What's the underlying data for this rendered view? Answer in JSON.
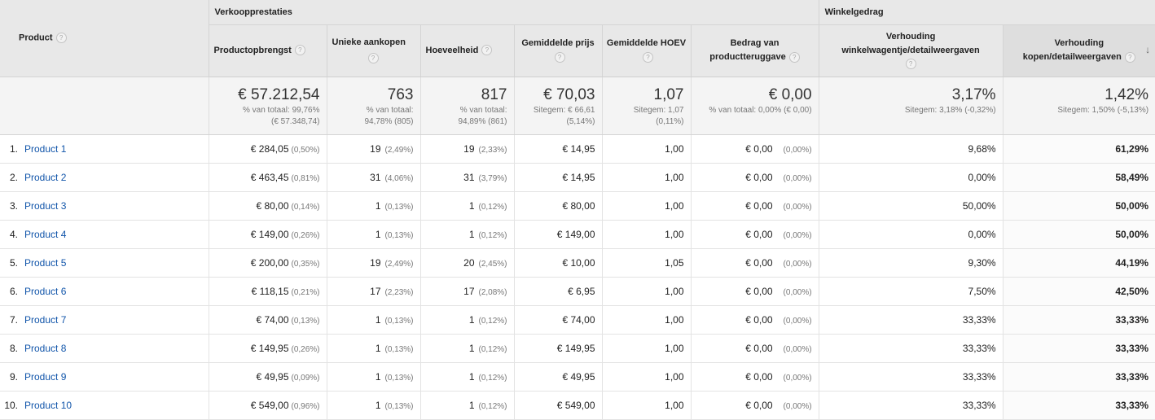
{
  "header": {
    "product_label": "Product",
    "group_sales": "Verkoopprestaties",
    "group_behavior": "Winkelgedrag",
    "columns": [
      {
        "label": "Productopbrengst"
      },
      {
        "label": "Unieke aankopen"
      },
      {
        "label": "Hoeveelheid"
      },
      {
        "label": "Gemiddelde prijs"
      },
      {
        "label": "Gemiddelde HOEV"
      },
      {
        "label": "Bedrag van productteruggave"
      },
      {
        "label": "Verhouding winkelwagentje/detailweergaven"
      },
      {
        "label": "Verhouding kopen/detailweergaven"
      }
    ],
    "help_glyph": "?",
    "sort_glyph": "↓"
  },
  "totals": [
    {
      "value": "€ 57.212,54",
      "sub1": "% van totaal: 99,76%",
      "sub2": "(€ 57.348,74)"
    },
    {
      "value": "763",
      "sub1": "% van totaal:",
      "sub2": "94,78% (805)"
    },
    {
      "value": "817",
      "sub1": "% van totaal:",
      "sub2": "94,89% (861)"
    },
    {
      "value": "€ 70,03",
      "sub1": "Sitegem: € 66,61",
      "sub2": "(5,14%)"
    },
    {
      "value": "1,07",
      "sub1": "Sitegem: 1,07",
      "sub2": "(0,11%)"
    },
    {
      "value": "€ 0,00",
      "sub1": "% van totaal: 0,00% (€ 0,00)",
      "sub2": ""
    },
    {
      "value": "3,17%",
      "sub1": "Sitegem: 3,18% (-0,32%)",
      "sub2": ""
    },
    {
      "value": "1,42%",
      "sub1": "Sitegem: 1,50% (-5,13%)",
      "sub2": ""
    }
  ],
  "rows": [
    {
      "idx": "1.",
      "name": "Product 1",
      "rev": "€ 284,05",
      "rev_pct": "(0,50%)",
      "uniq": "19",
      "uniq_pct": "(2,49%)",
      "qty": "19",
      "qty_pct": "(2,33%)",
      "price": "€ 14,95",
      "hoev": "1,00",
      "refund": "€ 0,00",
      "refund_pct": "(0,00%)",
      "cart": "9,68%",
      "buy": "61,29%"
    },
    {
      "idx": "2.",
      "name": "Product 2",
      "rev": "€ 463,45",
      "rev_pct": "(0,81%)",
      "uniq": "31",
      "uniq_pct": "(4,06%)",
      "qty": "31",
      "qty_pct": "(3,79%)",
      "price": "€ 14,95",
      "hoev": "1,00",
      "refund": "€ 0,00",
      "refund_pct": "(0,00%)",
      "cart": "0,00%",
      "buy": "58,49%"
    },
    {
      "idx": "3.",
      "name": "Product 3",
      "rev": "€ 80,00",
      "rev_pct": "(0,14%)",
      "uniq": "1",
      "uniq_pct": "(0,13%)",
      "qty": "1",
      "qty_pct": "(0,12%)",
      "price": "€ 80,00",
      "hoev": "1,00",
      "refund": "€ 0,00",
      "refund_pct": "(0,00%)",
      "cart": "50,00%",
      "buy": "50,00%"
    },
    {
      "idx": "4.",
      "name": "Product 4",
      "rev": "€ 149,00",
      "rev_pct": "(0,26%)",
      "uniq": "1",
      "uniq_pct": "(0,13%)",
      "qty": "1",
      "qty_pct": "(0,12%)",
      "price": "€ 149,00",
      "hoev": "1,00",
      "refund": "€ 0,00",
      "refund_pct": "(0,00%)",
      "cart": "0,00%",
      "buy": "50,00%"
    },
    {
      "idx": "5.",
      "name": "Product 5",
      "rev": "€ 200,00",
      "rev_pct": "(0,35%)",
      "uniq": "19",
      "uniq_pct": "(2,49%)",
      "qty": "20",
      "qty_pct": "(2,45%)",
      "price": "€ 10,00",
      "hoev": "1,05",
      "refund": "€ 0,00",
      "refund_pct": "(0,00%)",
      "cart": "9,30%",
      "buy": "44,19%"
    },
    {
      "idx": "6.",
      "name": "Product 6",
      "rev": "€ 118,15",
      "rev_pct": "(0,21%)",
      "uniq": "17",
      "uniq_pct": "(2,23%)",
      "qty": "17",
      "qty_pct": "(2,08%)",
      "price": "€ 6,95",
      "hoev": "1,00",
      "refund": "€ 0,00",
      "refund_pct": "(0,00%)",
      "cart": "7,50%",
      "buy": "42,50%"
    },
    {
      "idx": "7.",
      "name": "Product 7",
      "rev": "€ 74,00",
      "rev_pct": "(0,13%)",
      "uniq": "1",
      "uniq_pct": "(0,13%)",
      "qty": "1",
      "qty_pct": "(0,12%)",
      "price": "€ 74,00",
      "hoev": "1,00",
      "refund": "€ 0,00",
      "refund_pct": "(0,00%)",
      "cart": "33,33%",
      "buy": "33,33%"
    },
    {
      "idx": "8.",
      "name": "Product 8",
      "rev": "€ 149,95",
      "rev_pct": "(0,26%)",
      "uniq": "1",
      "uniq_pct": "(0,13%)",
      "qty": "1",
      "qty_pct": "(0,12%)",
      "price": "€ 149,95",
      "hoev": "1,00",
      "refund": "€ 0,00",
      "refund_pct": "(0,00%)",
      "cart": "33,33%",
      "buy": "33,33%"
    },
    {
      "idx": "9.",
      "name": "Product 9",
      "rev": "€ 49,95",
      "rev_pct": "(0,09%)",
      "uniq": "1",
      "uniq_pct": "(0,13%)",
      "qty": "1",
      "qty_pct": "(0,12%)",
      "price": "€ 49,95",
      "hoev": "1,00",
      "refund": "€ 0,00",
      "refund_pct": "(0,00%)",
      "cart": "33,33%",
      "buy": "33,33%"
    },
    {
      "idx": "10.",
      "name": "Product 10",
      "rev": "€ 549,00",
      "rev_pct": "(0,96%)",
      "uniq": "1",
      "uniq_pct": "(0,13%)",
      "qty": "1",
      "qty_pct": "(0,12%)",
      "price": "€ 549,00",
      "hoev": "1,00",
      "refund": "€ 0,00",
      "refund_pct": "(0,00%)",
      "cart": "33,33%",
      "buy": "33,33%"
    }
  ]
}
